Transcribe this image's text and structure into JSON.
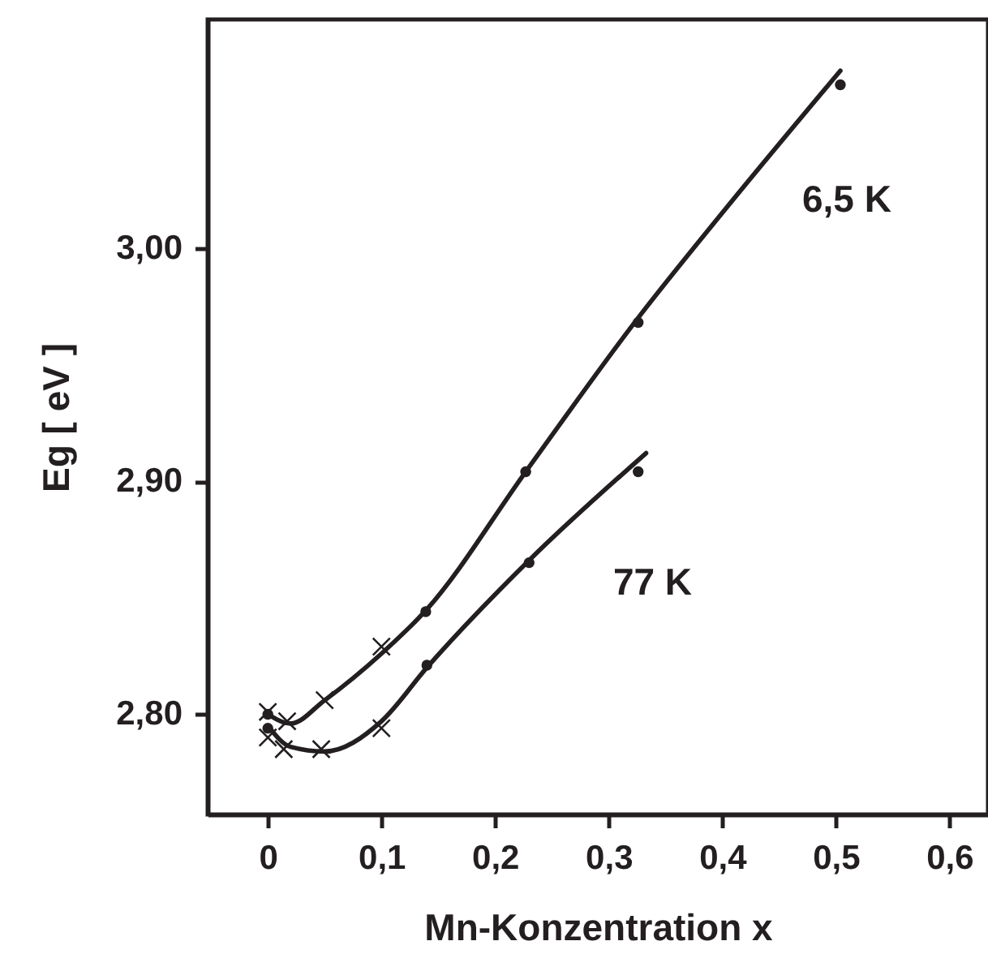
{
  "chart_data": {
    "type": "line",
    "xlabel": "Mn-Konzentration  x",
    "ylabel": "Eg [ eV ]",
    "xlim": [
      -0.053,
      0.634
    ],
    "ylim": [
      2.757,
      3.098
    ],
    "xticks": [
      {
        "value": 0,
        "label": "0"
      },
      {
        "value": 0.1,
        "label": "0,1"
      },
      {
        "value": 0.2,
        "label": "0,2"
      },
      {
        "value": 0.3,
        "label": "0,3"
      },
      {
        "value": 0.4,
        "label": "0,4"
      },
      {
        "value": 0.5,
        "label": "0,5"
      },
      {
        "value": 0.6,
        "label": "0,6"
      }
    ],
    "yticks": [
      {
        "value": 2.8,
        "label": "2,80"
      },
      {
        "value": 2.9,
        "label": "2,90"
      },
      {
        "value": 3.0,
        "label": "3,00"
      }
    ],
    "grid": false,
    "series": [
      {
        "name": "6,5 K",
        "color": "#231f20",
        "marker": "none",
        "line_style": "solid",
        "x": [
          0,
          0.02,
          0.05,
          0.1,
          0.14,
          0.227,
          0.326,
          0.4,
          0.504
        ],
        "values": [
          2.8,
          2.796,
          2.806,
          2.826,
          2.845,
          2.904,
          2.97,
          3.015,
          3.076
        ]
      },
      {
        "name": "77 K",
        "color": "#231f20",
        "marker": "none",
        "line_style": "solid",
        "x": [
          0,
          0.02,
          0.05,
          0.1,
          0.14,
          0.23,
          0.333
        ],
        "values": [
          2.795,
          2.786,
          2.784,
          2.797,
          2.82,
          2.866,
          2.912
        ]
      },
      {
        "type": "scatter",
        "color": "#231f20",
        "marker": "circle",
        "x": [
          0,
          0,
          0.139,
          0.227,
          0.326,
          0.504,
          0.14,
          0.23,
          0.326
        ],
        "values": [
          2.8,
          2.794,
          2.844,
          2.904,
          2.968,
          3.07,
          2.821,
          2.865,
          2.904
        ]
      },
      {
        "type": "scatter",
        "color": "#231f20",
        "marker": "cross",
        "x": [
          0,
          0.017,
          0.05,
          0.1,
          0,
          0.014,
          0.047,
          0.1
        ],
        "values": [
          2.801,
          2.797,
          2.806,
          2.829,
          2.79,
          2.785,
          2.785,
          2.794
        ]
      }
    ]
  }
}
